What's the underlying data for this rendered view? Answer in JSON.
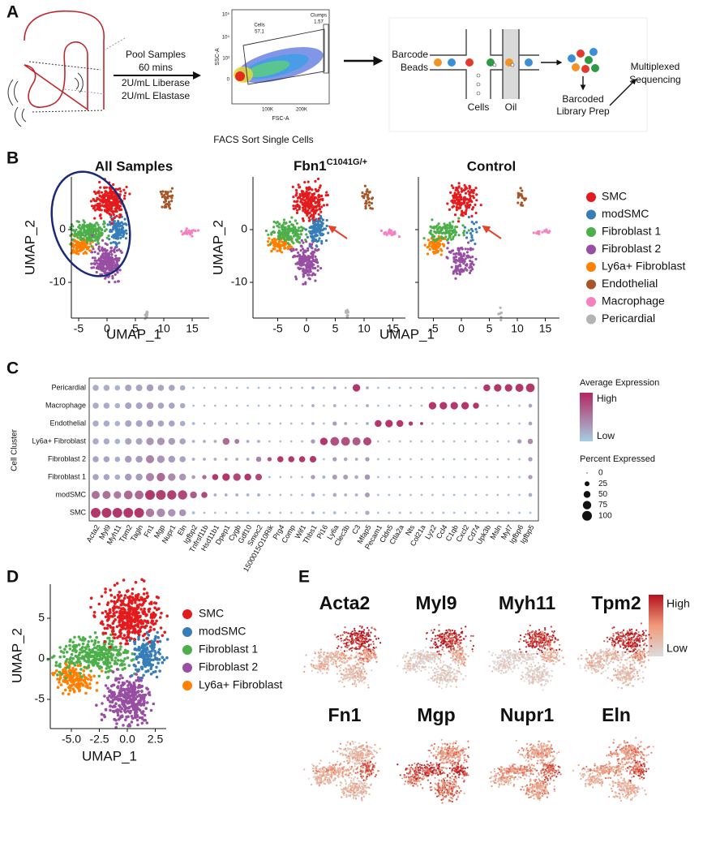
{
  "figure": {
    "panel_labels": [
      "A",
      "B",
      "C",
      "D",
      "E"
    ],
    "panel_a": {
      "pool_steps": [
        "Pool Samples",
        "60 mins",
        "2U/mL Liberase",
        "2U/mL Elastase"
      ],
      "facs": {
        "y_label": "SSC-A",
        "x_label": "FSC-A",
        "gate_cells": "Cells",
        "gate_cells_pct": 57.1,
        "gate_clumps": "Clumps",
        "gate_clumps_pct": 1.57,
        "y_tick_labels": [
          "10⁵",
          "10⁴",
          "10³",
          "0"
        ],
        "x_tick_labels": [
          "100K",
          "200K"
        ],
        "caption": "FACS Sort Single Cells"
      },
      "droplet": {
        "beads": [
          "Barcode",
          "Beads"
        ],
        "cells": "Cells",
        "oil": "Oil",
        "library": [
          "Barcoded",
          "Library Prep"
        ],
        "sequencing": [
          "Multiplexed",
          "Sequencing"
        ]
      }
    },
    "panel_b": {
      "title_all": "All Samples",
      "title_mutant": "Fbn1",
      "title_mutant_sup": "C1041G/+",
      "title_control": "Control",
      "x_label": "UMAP_1",
      "y_label": "UMAP_2",
      "xticks": [
        -5,
        0,
        5,
        10,
        15
      ],
      "yticks": [
        0,
        -10
      ],
      "legend": [
        {
          "name": "SMC",
          "color": "#e41a1c"
        },
        {
          "name": "modSMC",
          "color": "#377eb8"
        },
        {
          "name": "Fibroblast 1",
          "color": "#4daf4a"
        },
        {
          "name": "Fibroblast 2",
          "color": "#984ea3"
        },
        {
          "name": "Ly6a+ Fibroblast",
          "color": "#ff7f00"
        },
        {
          "name": "Endothelial",
          "color": "#a65628"
        },
        {
          "name": "Macrophage",
          "color": "#f781bf"
        },
        {
          "name": "Pericardial",
          "color": "#b3b3b3"
        }
      ]
    },
    "panel_c": {
      "y_label": "Cell Cluster",
      "clusters": [
        "SMC",
        "modSMC",
        "Fibroblast 1",
        "Fibroblast 2",
        "Ly6a+ Fibroblast",
        "Endothelial",
        "Macrophage",
        "Pericardial"
      ],
      "genes": [
        "Acta2",
        "Myl9",
        "Myh11",
        "Tpm2",
        "Tagln",
        "Fn1",
        "Mgp",
        "Nupr1",
        "Eln",
        "Igfbp2",
        "Tnfrsf11b",
        "Hsd11b1",
        "Dpep1",
        "Cygb",
        "Gdf10",
        "Smoc2",
        "1500015O10Rik",
        "Prg4",
        "Comp",
        "Wif1",
        "Thbs1",
        "Pi16",
        "Ly6a",
        "Clec3b",
        "C3",
        "Mfap5",
        "Pecam1",
        "Cldn5",
        "Ctla2a",
        "Nts",
        "Col21a",
        "Lyz2",
        "Ccl4",
        "C1qb",
        "Cxcl2",
        "Cd74",
        "Upk3b",
        "Msln",
        "Myl7",
        "Igfbp6",
        "Igfbp5"
      ],
      "percent": [
        [
          100,
          100,
          100,
          100,
          100,
          75,
          75,
          60,
          50,
          10,
          5,
          5,
          5,
          5,
          5,
          5,
          5,
          5,
          5,
          5,
          10,
          5,
          10,
          5,
          5,
          20,
          5,
          5,
          5,
          5,
          5,
          5,
          5,
          5,
          5,
          5,
          5,
          5,
          5,
          5,
          5
        ],
        [
          70,
          70,
          60,
          80,
          80,
          100,
          100,
          90,
          90,
          50,
          40,
          10,
          10,
          10,
          10,
          10,
          5,
          5,
          5,
          5,
          15,
          5,
          15,
          10,
          10,
          25,
          5,
          5,
          5,
          5,
          5,
          5,
          5,
          5,
          5,
          5,
          5,
          5,
          5,
          5,
          15
        ],
        [
          40,
          40,
          30,
          50,
          50,
          70,
          75,
          60,
          50,
          15,
          20,
          40,
          60,
          60,
          50,
          45,
          5,
          5,
          5,
          5,
          20,
          10,
          25,
          25,
          15,
          30,
          5,
          5,
          5,
          5,
          5,
          5,
          5,
          5,
          5,
          5,
          5,
          5,
          5,
          5,
          20
        ],
        [
          40,
          40,
          30,
          50,
          50,
          70,
          60,
          50,
          40,
          10,
          10,
          10,
          10,
          10,
          10,
          30,
          20,
          40,
          40,
          40,
          45,
          5,
          20,
          15,
          10,
          20,
          5,
          5,
          5,
          5,
          5,
          5,
          5,
          5,
          5,
          5,
          5,
          5,
          5,
          5,
          20
        ],
        [
          40,
          40,
          30,
          45,
          45,
          60,
          60,
          50,
          40,
          10,
          10,
          10,
          50,
          25,
          10,
          10,
          5,
          5,
          5,
          5,
          20,
          60,
          80,
          80,
          70,
          70,
          5,
          5,
          5,
          5,
          5,
          5,
          5,
          5,
          5,
          5,
          5,
          5,
          5,
          20,
          30
        ],
        [
          40,
          40,
          30,
          45,
          45,
          50,
          40,
          40,
          30,
          10,
          5,
          5,
          5,
          5,
          5,
          5,
          5,
          5,
          5,
          5,
          10,
          5,
          20,
          10,
          5,
          10,
          50,
          60,
          50,
          20,
          10,
          5,
          5,
          5,
          5,
          5,
          5,
          5,
          5,
          5,
          15
        ],
        [
          40,
          40,
          30,
          45,
          45,
          50,
          40,
          40,
          30,
          5,
          5,
          5,
          5,
          5,
          5,
          5,
          5,
          5,
          5,
          5,
          10,
          5,
          10,
          5,
          5,
          10,
          5,
          5,
          5,
          5,
          5,
          60,
          60,
          60,
          60,
          40,
          5,
          5,
          5,
          5,
          15
        ],
        [
          40,
          40,
          30,
          45,
          45,
          50,
          40,
          40,
          30,
          5,
          5,
          5,
          5,
          5,
          5,
          5,
          5,
          5,
          5,
          5,
          10,
          5,
          10,
          5,
          60,
          10,
          5,
          5,
          5,
          5,
          5,
          5,
          5,
          5,
          5,
          5,
          50,
          60,
          60,
          70,
          80
        ]
      ],
      "expression": [
        [
          0.9,
          0.9,
          0.9,
          0.9,
          0.9,
          0.5,
          0.4,
          0.35,
          0.35,
          0.1,
          0.1,
          0.1,
          0.1,
          0.1,
          0.1,
          0.1,
          0.1,
          0.1,
          0.1,
          0.1,
          0.15,
          0.1,
          0.1,
          0.1,
          0.1,
          0.2,
          0.1,
          0.1,
          0.1,
          0.1,
          0.1,
          0.1,
          0.1,
          0.1,
          0.1,
          0.1,
          0.1,
          0.1,
          0.1,
          0.1,
          0.1
        ],
        [
          0.55,
          0.55,
          0.5,
          0.6,
          0.6,
          0.9,
          0.85,
          0.85,
          0.8,
          0.7,
          0.8,
          0.2,
          0.2,
          0.2,
          0.15,
          0.2,
          0.1,
          0.1,
          0.1,
          0.1,
          0.2,
          0.1,
          0.2,
          0.15,
          0.15,
          0.3,
          0.1,
          0.1,
          0.1,
          0.1,
          0.1,
          0.1,
          0.1,
          0.1,
          0.1,
          0.1,
          0.1,
          0.1,
          0.1,
          0.1,
          0.2
        ],
        [
          0.25,
          0.25,
          0.2,
          0.3,
          0.3,
          0.45,
          0.6,
          0.4,
          0.35,
          0.3,
          0.6,
          0.9,
          0.9,
          0.8,
          0.9,
          0.8,
          0.1,
          0.1,
          0.1,
          0.1,
          0.3,
          0.2,
          0.3,
          0.3,
          0.2,
          0.35,
          0.1,
          0.1,
          0.1,
          0.1,
          0.1,
          0.1,
          0.1,
          0.1,
          0.1,
          0.1,
          0.1,
          0.1,
          0.1,
          0.1,
          0.3
        ],
        [
          0.25,
          0.25,
          0.2,
          0.3,
          0.3,
          0.45,
          0.35,
          0.3,
          0.25,
          0.2,
          0.2,
          0.2,
          0.2,
          0.2,
          0.2,
          0.45,
          0.7,
          0.9,
          0.9,
          0.9,
          0.9,
          0.1,
          0.3,
          0.2,
          0.2,
          0.3,
          0.1,
          0.1,
          0.1,
          0.1,
          0.1,
          0.1,
          0.1,
          0.1,
          0.1,
          0.1,
          0.1,
          0.1,
          0.1,
          0.1,
          0.3
        ],
        [
          0.2,
          0.2,
          0.15,
          0.25,
          0.25,
          0.35,
          0.35,
          0.3,
          0.25,
          0.15,
          0.2,
          0.2,
          0.6,
          0.5,
          0.2,
          0.2,
          0.1,
          0.1,
          0.1,
          0.1,
          0.3,
          0.9,
          0.75,
          0.75,
          0.7,
          0.8,
          0.1,
          0.1,
          0.1,
          0.1,
          0.1,
          0.1,
          0.1,
          0.1,
          0.1,
          0.1,
          0.1,
          0.1,
          0.1,
          0.3,
          0.4
        ],
        [
          0.2,
          0.2,
          0.15,
          0.25,
          0.25,
          0.3,
          0.25,
          0.25,
          0.2,
          0.1,
          0.1,
          0.1,
          0.1,
          0.1,
          0.1,
          0.1,
          0.1,
          0.1,
          0.1,
          0.1,
          0.2,
          0.1,
          0.3,
          0.2,
          0.1,
          0.2,
          0.9,
          0.9,
          0.9,
          0.9,
          0.9,
          0.1,
          0.1,
          0.1,
          0.1,
          0.1,
          0.1,
          0.1,
          0.1,
          0.1,
          0.25
        ],
        [
          0.2,
          0.2,
          0.15,
          0.25,
          0.25,
          0.3,
          0.25,
          0.25,
          0.2,
          0.1,
          0.1,
          0.1,
          0.1,
          0.1,
          0.1,
          0.1,
          0.1,
          0.1,
          0.1,
          0.1,
          0.2,
          0.1,
          0.2,
          0.1,
          0.1,
          0.2,
          0.1,
          0.1,
          0.1,
          0.1,
          0.1,
          0.9,
          0.9,
          0.9,
          0.9,
          0.9,
          0.1,
          0.1,
          0.1,
          0.1,
          0.25
        ],
        [
          0.2,
          0.2,
          0.15,
          0.25,
          0.25,
          0.3,
          0.25,
          0.25,
          0.2,
          0.1,
          0.1,
          0.1,
          0.1,
          0.1,
          0.1,
          0.1,
          0.1,
          0.1,
          0.1,
          0.1,
          0.2,
          0.1,
          0.2,
          0.1,
          0.9,
          0.2,
          0.1,
          0.1,
          0.1,
          0.1,
          0.1,
          0.1,
          0.1,
          0.1,
          0.1,
          0.1,
          0.9,
          0.9,
          0.9,
          0.9,
          0.9
        ]
      ],
      "expression_title": "Average Expression",
      "expression_high": "High",
      "expression_low": "Low",
      "percent_title": "Percent Expressed",
      "percent_ticks": [
        0,
        25,
        50,
        75,
        100
      ]
    },
    "panel_d": {
      "x_label": "UMAP_1",
      "y_label": "UMAP_2",
      "xticks": [
        {
          "value": -5,
          "label": "-5.0"
        },
        {
          "value": -2.5,
          "label": "-2.5"
        },
        {
          "value": 0,
          "label": "0.0"
        },
        {
          "value": 2.5,
          "label": "2.5"
        }
      ],
      "yticks": [
        5,
        0,
        -5
      ],
      "legend": [
        {
          "name": "SMC",
          "color": "#e41a1c"
        },
        {
          "name": "modSMC",
          "color": "#377eb8"
        },
        {
          "name": "Fibroblast 1",
          "color": "#4daf4a"
        },
        {
          "name": "Fibroblast 2",
          "color": "#984ea3"
        },
        {
          "name": "Ly6a+ Fibroblast",
          "color": "#ff7f00"
        }
      ]
    },
    "panel_e": {
      "genes": [
        "Acta2",
        "Myl9",
        "Myh11",
        "Tpm2",
        "Fn1",
        "Mgp",
        "Nupr1",
        "Eln"
      ],
      "legend_high": "High",
      "legend_low": "Low"
    }
  }
}
